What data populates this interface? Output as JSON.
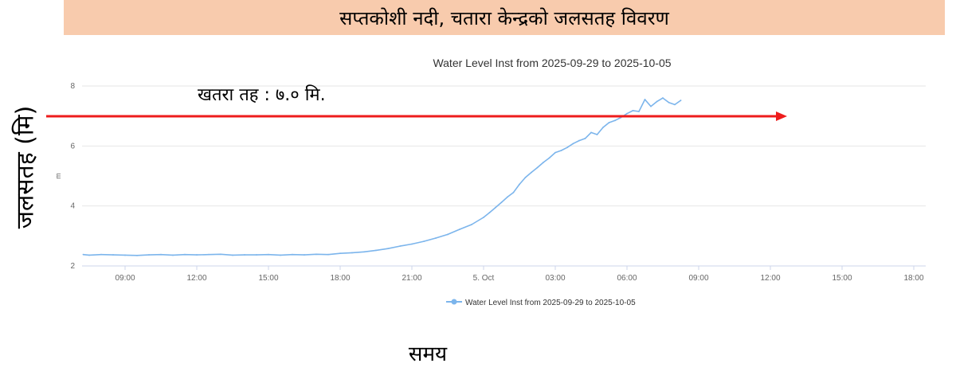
{
  "banner": {
    "text": "सप्तकोशी नदी, चतारा केन्द्रको जलसतह विवरण"
  },
  "axis_labels": {
    "y": "जलसतह (मि)",
    "x": "समय"
  },
  "danger_label": "खतरा तह : ७.० मि.",
  "colors": {
    "banner_bg": "#f8cbad",
    "series": "#7cb5ec",
    "danger_line": "#ee1c1c",
    "grid": "#e6e6e6"
  },
  "chart_data": {
    "type": "line",
    "title": "Water Level Inst from 2025-09-29 to 2025-10-05",
    "ylabel": "m",
    "xlabel": "",
    "ylim": [
      2,
      8
    ],
    "yticks": [
      "2",
      "4",
      "6",
      "8"
    ],
    "xticks": [
      "09:00",
      "12:00",
      "15:00",
      "18:00",
      "21:00",
      "5. Oct",
      "03:00",
      "06:00",
      "09:00",
      "12:00",
      "15:00",
      "18:00"
    ],
    "xtick_hours": [
      9,
      12,
      15,
      18,
      21,
      24,
      27,
      30,
      33,
      36,
      39,
      42
    ],
    "x_range_hours": [
      7.2,
      42.5
    ],
    "grid": true,
    "legend_position": "bottom-center",
    "danger_level": 7.0,
    "series": [
      {
        "name": "Water Level Inst from 2025-09-29 to 2025-10-05",
        "x_hours": [
          7.25,
          7.5,
          8.0,
          8.5,
          9.0,
          9.5,
          10.0,
          10.5,
          11.0,
          11.5,
          12.0,
          12.5,
          13.0,
          13.5,
          14.0,
          14.5,
          15.0,
          15.5,
          16.0,
          16.5,
          17.0,
          17.5,
          18.0,
          18.5,
          19.0,
          19.5,
          20.0,
          20.5,
          21.0,
          21.5,
          22.0,
          22.5,
          23.0,
          23.5,
          24.0,
          24.25,
          24.5,
          24.75,
          25.0,
          25.25,
          25.5,
          25.75,
          26.0,
          26.25,
          26.5,
          26.75,
          27.0,
          27.25,
          27.5,
          27.75,
          28.0,
          28.25,
          28.5,
          28.75,
          29.0,
          29.25,
          29.5,
          29.75,
          30.0,
          30.25,
          30.5,
          30.75,
          31.0,
          31.25,
          31.5,
          31.75,
          32.0,
          32.25
        ],
        "values": [
          2.38,
          2.36,
          2.38,
          2.37,
          2.36,
          2.35,
          2.37,
          2.38,
          2.36,
          2.38,
          2.37,
          2.38,
          2.39,
          2.36,
          2.37,
          2.37,
          2.38,
          2.36,
          2.38,
          2.37,
          2.39,
          2.38,
          2.42,
          2.44,
          2.47,
          2.52,
          2.58,
          2.66,
          2.73,
          2.82,
          2.93,
          3.05,
          3.22,
          3.38,
          3.62,
          3.78,
          3.95,
          4.12,
          4.3,
          4.45,
          4.72,
          4.95,
          5.12,
          5.28,
          5.45,
          5.6,
          5.78,
          5.85,
          5.95,
          6.08,
          6.18,
          6.25,
          6.45,
          6.38,
          6.62,
          6.78,
          6.85,
          6.95,
          7.08,
          7.18,
          7.15,
          7.55,
          7.32,
          7.48,
          7.6,
          7.45,
          7.38,
          7.52
        ]
      }
    ]
  }
}
